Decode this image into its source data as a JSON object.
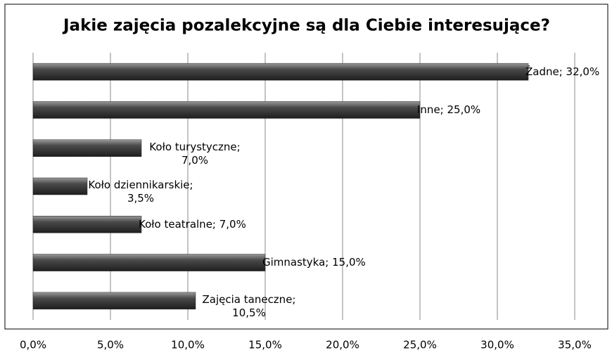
{
  "chart_data": {
    "type": "bar",
    "orientation": "horizontal",
    "title": "Jakie zajęcia pozalekcyjne są dla Ciebie interesujące?",
    "categories": [
      "Żadne",
      "Inne",
      "Koło turystyczne",
      "Koło dziennikarskie",
      "Koło teatralne",
      "Gimnastyka",
      "Zajęcia taneczne"
    ],
    "values": [
      32,
      25,
      7,
      3.5,
      7,
      15,
      10.5
    ],
    "value_labels": [
      "Żadne; 32,0%",
      "Inne; 25,0%",
      "Koło turystyczne; 7,0%",
      "Koło dziennikarskie; 3,5%",
      "Koło teatralne; 7,0%",
      "Gimnastyka; 15,0%",
      "Zajęcia taneczne; 10,5%"
    ],
    "color": "#3a3a3a",
    "xlim": [
      0,
      35
    ],
    "xticks": [
      {
        "value": 0,
        "label": "0,0%"
      },
      {
        "value": 5,
        "label": "5,0%"
      },
      {
        "value": 10,
        "label": "10,0%"
      },
      {
        "value": 15,
        "label": "15,0%"
      },
      {
        "value": 20,
        "label": "20,0%"
      },
      {
        "value": 25,
        "label": "25,0%"
      },
      {
        "value": 30,
        "label": "30,0%"
      },
      {
        "value": 35,
        "label": "35,0%"
      }
    ],
    "grid": true
  }
}
